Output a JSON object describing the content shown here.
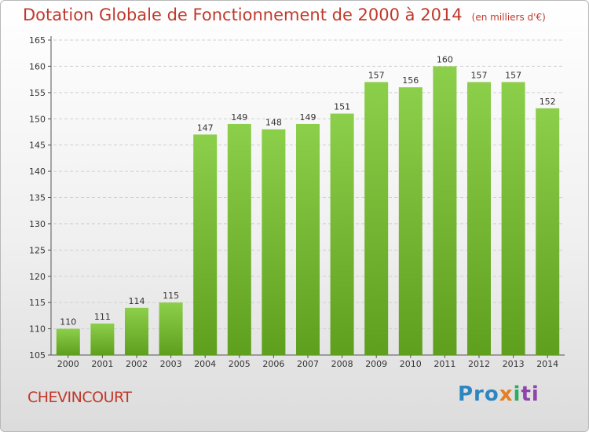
{
  "header": {
    "title": "Dotation Globale de Fonctionnement de 2000 à 2014",
    "unit": "(en milliers d'€)"
  },
  "footer": {
    "commune": "CHEVINCOURT",
    "logo": [
      "Pro",
      "x",
      "i",
      "ti"
    ]
  },
  "colors": {
    "bar_top": "#8ccf4a",
    "bar_bottom": "#5f9f1e",
    "title": "#c0392b"
  },
  "chart_data": {
    "type": "bar",
    "categories": [
      "2000",
      "2001",
      "2002",
      "2003",
      "2004",
      "2005",
      "2006",
      "2007",
      "2008",
      "2009",
      "2010",
      "2011",
      "2012",
      "2013",
      "2014"
    ],
    "values": [
      110,
      111,
      114,
      115,
      147,
      149,
      148,
      149,
      151,
      157,
      156,
      160,
      157,
      157,
      152
    ],
    "ylim": [
      105,
      165
    ],
    "yticks": [
      105,
      110,
      115,
      120,
      125,
      130,
      135,
      140,
      145,
      150,
      155,
      160,
      165
    ],
    "grid": true
  }
}
